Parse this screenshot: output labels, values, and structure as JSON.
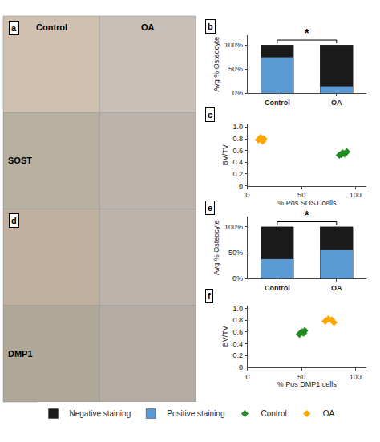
{
  "chart_data": [
    {
      "type": "image",
      "title": "a",
      "categories": [
        "Control",
        "OA"
      ],
      "subtitle": "SOST",
      "colors": [
        "#cfc0b0",
        "#c8bfb8",
        "#b8b0a0",
        "#bcb4ac"
      ]
    },
    {
      "type": "bar",
      "title": "b",
      "categories": [
        "Control",
        "OA"
      ],
      "stacked": true,
      "series": [
        {
          "name": "Positive staining",
          "color": "#5B9BD5",
          "values": [
            75,
            15
          ]
        },
        {
          "name": "Negative staining",
          "color": "#1a1a1a",
          "values": [
            25,
            85
          ]
        }
      ],
      "ylabel": "Avg % Osteocyte",
      "ylim": [
        0,
        120
      ],
      "yticks": [
        {
          "value": 0,
          "label": "0%"
        },
        {
          "value": 50,
          "label": "50%"
        },
        {
          "value": 100,
          "label": "100%"
        }
      ],
      "annotations": [
        {
          "text": "*"
        }
      ],
      "grid": false,
      "legend": "bottom"
    },
    {
      "type": "scatter",
      "title": "c",
      "series": [
        {
          "name": "OA",
          "color": "#FFA500",
          "marker": "diamond",
          "x": [
            10,
            12,
            15,
            14
          ],
          "values": [
            0.78,
            0.82,
            0.8,
            0.76
          ]
        },
        {
          "name": "Control",
          "color": "#228B22",
          "marker": "diamond",
          "x": [
            85,
            88,
            90,
            92,
            87
          ],
          "values": [
            0.52,
            0.56,
            0.54,
            0.58,
            0.53
          ]
        }
      ],
      "xlabel": "% Pos SOST cells",
      "ylabel": "BV/TV",
      "xlim": [
        0,
        110
      ],
      "ylim": [
        0,
        1.05
      ],
      "xticks": [
        0,
        50,
        100
      ],
      "yticks": [
        0,
        0.2,
        0.4,
        0.6,
        0.8,
        {
          "value": 1,
          "label": "1.0"
        }
      ],
      "grid": false,
      "legend": "bottom"
    },
    {
      "type": "image",
      "title": "d",
      "subtitle": "DMP1",
      "colors": [
        "#c0b0a0",
        "#bcb4ac",
        "#b0a898",
        "#b4aca4"
      ]
    },
    {
      "type": "bar",
      "title": "e",
      "categories": [
        "Control",
        "OA"
      ],
      "stacked": true,
      "series": [
        {
          "name": "Positive staining",
          "color": "#5B9BD5",
          "values": [
            38,
            55
          ]
        },
        {
          "name": "Negative staining",
          "color": "#1a1a1a",
          "values": [
            62,
            45
          ]
        }
      ],
      "ylabel": "Avg % Osteocyte",
      "ylim": [
        0,
        120
      ],
      "yticks": [
        {
          "value": 0,
          "label": "0%"
        },
        {
          "value": 50,
          "label": "50%"
        },
        {
          "value": 100,
          "label": "100%"
        }
      ],
      "annotations": [
        {
          "text": "*"
        }
      ],
      "grid": false,
      "legend": "bottom"
    },
    {
      "type": "scatter",
      "title": "f",
      "series": [
        {
          "name": "OA",
          "color": "#FFA500",
          "marker": "diamond",
          "x": [
            72,
            75,
            78,
            80
          ],
          "values": [
            0.78,
            0.82,
            0.8,
            0.76
          ]
        },
        {
          "name": "Control",
          "color": "#228B22",
          "marker": "diamond",
          "x": [
            48,
            50,
            52,
            53,
            51
          ],
          "values": [
            0.56,
            0.6,
            0.58,
            0.62,
            0.59
          ]
        }
      ],
      "xlabel": "% Pos DMP1 cells",
      "ylabel": "BV/TV",
      "xlim": [
        0,
        110
      ],
      "ylim": [
        0,
        1.05
      ],
      "xticks": [
        0,
        50,
        100
      ],
      "yticks": [
        0,
        0.2,
        0.4,
        0.6,
        0.8,
        {
          "value": 1,
          "label": "1.0"
        }
      ],
      "grid": false,
      "legend": "bottom"
    }
  ]
}
